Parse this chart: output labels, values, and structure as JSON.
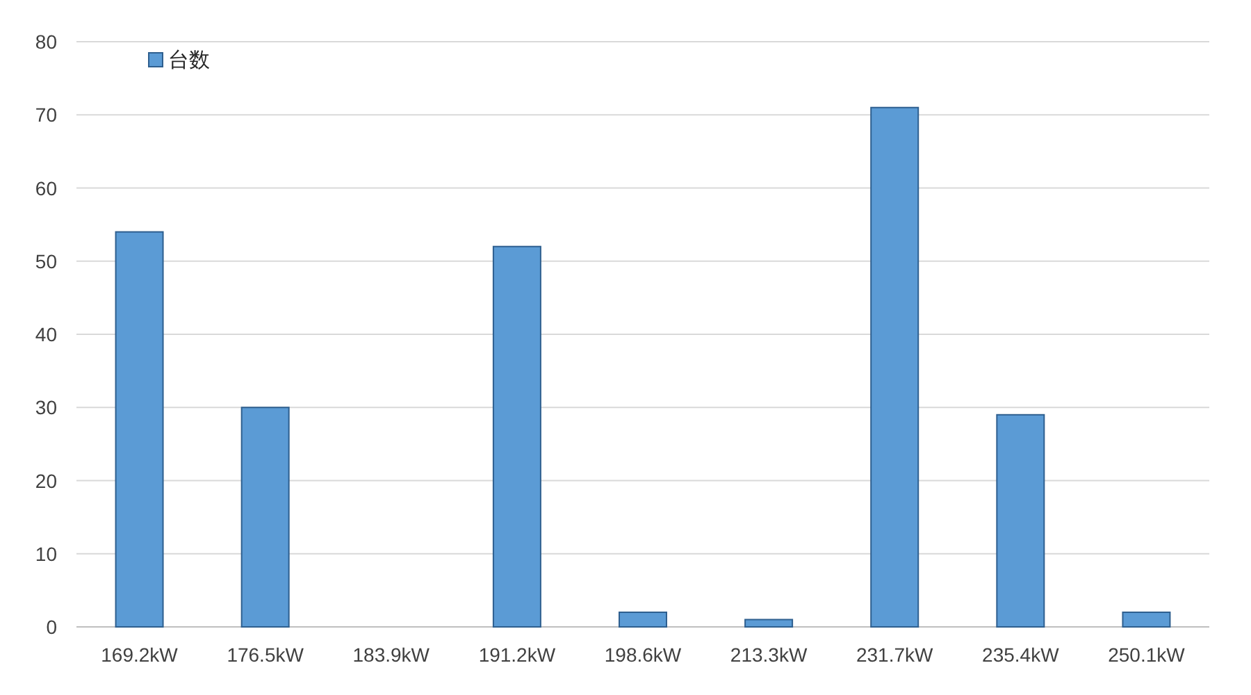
{
  "chart_data": {
    "type": "bar",
    "categories": [
      "169.2kW",
      "176.5kW",
      "183.9kW",
      "191.2kW",
      "198.6kW",
      "213.3kW",
      "231.7kW",
      "235.4kW",
      "250.1kW"
    ],
    "series": [
      {
        "name": "台数",
        "color": "#5b9bd5",
        "values": [
          54,
          30,
          0,
          52,
          2,
          1,
          71,
          29,
          2
        ]
      }
    ],
    "ylim": [
      0,
      80
    ],
    "yticks": [
      0,
      10,
      20,
      30,
      40,
      50,
      60,
      70,
      80
    ],
    "grid": "y",
    "legend": "top left"
  }
}
